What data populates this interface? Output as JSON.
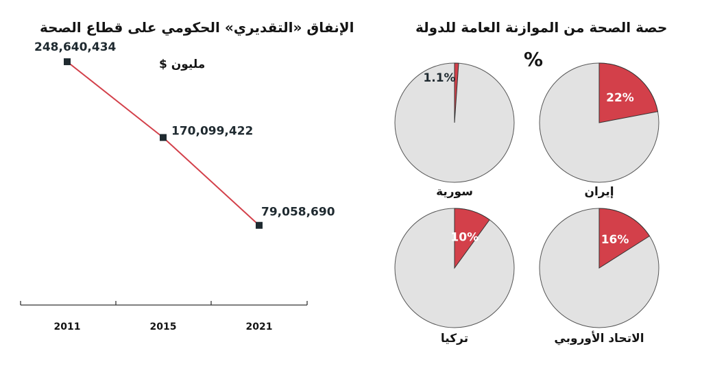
{
  "chart_data": [
    {
      "type": "line",
      "title": "الإنفاق «التقديري» الحكومي على قطاع الصحة",
      "unit": "مليون $",
      "x": [
        "2011",
        "2015",
        "2021"
      ],
      "series": [
        {
          "values": [
            248640434,
            170099422,
            79058690
          ],
          "labels": [
            "248,640,434",
            "170,099,422",
            "79,058,690"
          ]
        }
      ],
      "line_color": "#d3404a",
      "marker_color": "#1f2a30",
      "ylim": [
        0,
        270000000
      ]
    },
    {
      "type": "pie",
      "title": "حصة الصحة من الموازنة العامة للدولة",
      "unit": "%",
      "slices": [
        {
          "name": "إيران",
          "value": 22,
          "label": "22%"
        },
        {
          "name": "سورية",
          "value": 1.1,
          "label": "1.1%"
        },
        {
          "name": "الاتحاد الأوروبي",
          "value": 16,
          "label": "16%"
        },
        {
          "name": "تركيا",
          "value": 10,
          "label": "10%"
        }
      ],
      "highlight_color": "#d3404a",
      "base_color": "#e2e2e2"
    }
  ]
}
